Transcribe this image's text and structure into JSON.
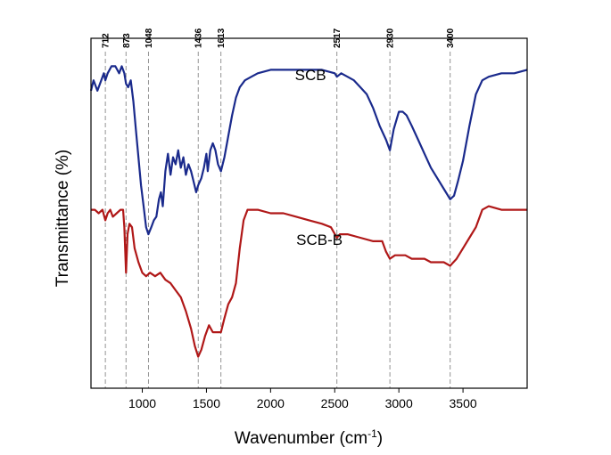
{
  "chart_data": {
    "type": "line",
    "xlabel": "Wavenumber (cm",
    "xlabel_superscript": "-1",
    "xlabel_suffix": ")",
    "ylabel": "Transmittance (%)",
    "xlim": [
      600,
      4000
    ],
    "ylim": [
      0,
      100
    ],
    "x_ticks": [
      1000,
      1500,
      2000,
      2500,
      3000,
      3500
    ],
    "x_tick_labels": [
      "1000",
      "1500",
      "2000",
      "2500",
      "3000",
      "3500"
    ],
    "y_ticks_shown": false,
    "reference_lines": [
      {
        "x": 712,
        "label": "712"
      },
      {
        "x": 873,
        "label": "873"
      },
      {
        "x": 1048,
        "label": "1048"
      },
      {
        "x": 1436,
        "label": "1436"
      },
      {
        "x": 1613,
        "label": "1613"
      },
      {
        "x": 2517,
        "label": "2517"
      },
      {
        "x": 2930,
        "label": "2930"
      },
      {
        "x": 3400,
        "label": "3400"
      }
    ],
    "series": [
      {
        "name": "SCB",
        "color": "#1a2a8c",
        "label_at": {
          "x": 2190,
          "y": 88
        },
        "points": [
          [
            600,
            85
          ],
          [
            620,
            88
          ],
          [
            650,
            85
          ],
          [
            680,
            88
          ],
          [
            700,
            90
          ],
          [
            712,
            88
          ],
          [
            730,
            90
          ],
          [
            760,
            92
          ],
          [
            790,
            92
          ],
          [
            820,
            90
          ],
          [
            840,
            92
          ],
          [
            860,
            90
          ],
          [
            873,
            87
          ],
          [
            890,
            86
          ],
          [
            910,
            88
          ],
          [
            930,
            82
          ],
          [
            950,
            74
          ],
          [
            970,
            66
          ],
          [
            990,
            58
          ],
          [
            1010,
            52
          ],
          [
            1030,
            46
          ],
          [
            1048,
            44
          ],
          [
            1070,
            46
          ],
          [
            1090,
            48
          ],
          [
            1110,
            49
          ],
          [
            1130,
            54
          ],
          [
            1145,
            56
          ],
          [
            1160,
            52
          ],
          [
            1180,
            62
          ],
          [
            1200,
            67
          ],
          [
            1220,
            61
          ],
          [
            1240,
            66
          ],
          [
            1260,
            64
          ],
          [
            1280,
            68
          ],
          [
            1300,
            63
          ],
          [
            1320,
            66
          ],
          [
            1340,
            61
          ],
          [
            1360,
            64
          ],
          [
            1380,
            62
          ],
          [
            1400,
            59
          ],
          [
            1420,
            56
          ],
          [
            1436,
            58
          ],
          [
            1460,
            60
          ],
          [
            1480,
            63
          ],
          [
            1500,
            67
          ],
          [
            1510,
            62
          ],
          [
            1530,
            68
          ],
          [
            1550,
            70
          ],
          [
            1570,
            68
          ],
          [
            1590,
            64
          ],
          [
            1613,
            62
          ],
          [
            1640,
            66
          ],
          [
            1670,
            72
          ],
          [
            1700,
            78
          ],
          [
            1730,
            83
          ],
          [
            1760,
            86
          ],
          [
            1800,
            88
          ],
          [
            1850,
            89
          ],
          [
            1900,
            90
          ],
          [
            2000,
            91
          ],
          [
            2100,
            91
          ],
          [
            2200,
            91
          ],
          [
            2300,
            91
          ],
          [
            2400,
            91
          ],
          [
            2500,
            90
          ],
          [
            2517,
            89
          ],
          [
            2550,
            90
          ],
          [
            2600,
            89
          ],
          [
            2650,
            88
          ],
          [
            2700,
            86
          ],
          [
            2750,
            84
          ],
          [
            2800,
            80
          ],
          [
            2850,
            75
          ],
          [
            2900,
            71
          ],
          [
            2930,
            68
          ],
          [
            2960,
            74
          ],
          [
            3000,
            79
          ],
          [
            3030,
            79
          ],
          [
            3060,
            78
          ],
          [
            3100,
            75
          ],
          [
            3150,
            71
          ],
          [
            3200,
            67
          ],
          [
            3250,
            63
          ],
          [
            3300,
            60
          ],
          [
            3350,
            57
          ],
          [
            3400,
            54
          ],
          [
            3430,
            55
          ],
          [
            3460,
            59
          ],
          [
            3500,
            65
          ],
          [
            3550,
            75
          ],
          [
            3600,
            84
          ],
          [
            3650,
            88
          ],
          [
            3700,
            89
          ],
          [
            3800,
            90
          ],
          [
            3900,
            90
          ],
          [
            4000,
            91
          ]
        ]
      },
      {
        "name": "SCB-B",
        "color": "#b01818",
        "label_at": {
          "x": 2200,
          "y": 41
        },
        "points": [
          [
            600,
            51
          ],
          [
            630,
            51
          ],
          [
            660,
            50
          ],
          [
            690,
            51
          ],
          [
            712,
            48
          ],
          [
            730,
            50
          ],
          [
            750,
            51
          ],
          [
            770,
            49
          ],
          [
            800,
            50
          ],
          [
            830,
            51
          ],
          [
            850,
            51
          ],
          [
            860,
            46
          ],
          [
            873,
            33
          ],
          [
            885,
            44
          ],
          [
            900,
            47
          ],
          [
            920,
            46
          ],
          [
            940,
            40
          ],
          [
            970,
            36
          ],
          [
            1000,
            33
          ],
          [
            1030,
            32
          ],
          [
            1060,
            33
          ],
          [
            1100,
            32
          ],
          [
            1140,
            33
          ],
          [
            1180,
            31
          ],
          [
            1220,
            30
          ],
          [
            1260,
            28
          ],
          [
            1300,
            26
          ],
          [
            1340,
            22
          ],
          [
            1380,
            17
          ],
          [
            1410,
            12
          ],
          [
            1436,
            9
          ],
          [
            1460,
            11
          ],
          [
            1490,
            15
          ],
          [
            1520,
            18
          ],
          [
            1550,
            16
          ],
          [
            1580,
            16
          ],
          [
            1613,
            16
          ],
          [
            1640,
            20
          ],
          [
            1670,
            24
          ],
          [
            1700,
            26
          ],
          [
            1730,
            30
          ],
          [
            1760,
            40
          ],
          [
            1790,
            48
          ],
          [
            1820,
            51
          ],
          [
            1850,
            51
          ],
          [
            1900,
            51
          ],
          [
            2000,
            50
          ],
          [
            2100,
            50
          ],
          [
            2200,
            49
          ],
          [
            2300,
            48
          ],
          [
            2400,
            47
          ],
          [
            2470,
            46
          ],
          [
            2517,
            43
          ],
          [
            2540,
            44
          ],
          [
            2600,
            44
          ],
          [
            2700,
            43
          ],
          [
            2800,
            42
          ],
          [
            2870,
            42
          ],
          [
            2900,
            39
          ],
          [
            2930,
            37
          ],
          [
            2970,
            38
          ],
          [
            3000,
            38
          ],
          [
            3050,
            38
          ],
          [
            3100,
            37
          ],
          [
            3150,
            37
          ],
          [
            3200,
            37
          ],
          [
            3250,
            36
          ],
          [
            3300,
            36
          ],
          [
            3350,
            36
          ],
          [
            3400,
            35
          ],
          [
            3450,
            37
          ],
          [
            3500,
            40
          ],
          [
            3550,
            43
          ],
          [
            3600,
            46
          ],
          [
            3650,
            51
          ],
          [
            3700,
            52
          ],
          [
            3800,
            51
          ],
          [
            3900,
            51
          ],
          [
            4000,
            51
          ]
        ]
      }
    ]
  }
}
